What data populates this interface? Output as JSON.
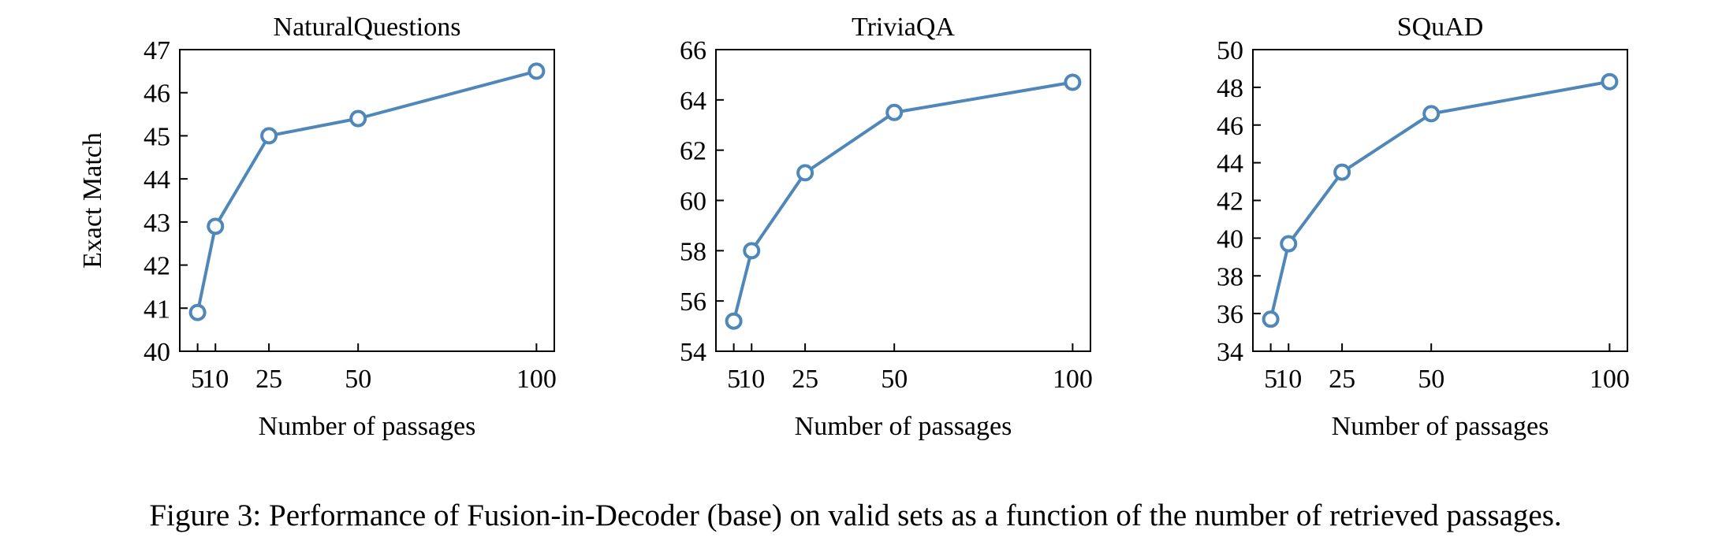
{
  "caption": "Figure 3: Performance of Fusion-in-Decoder (base) on valid sets as a function of the number of retrieved passages.",
  "series_color": "#4f87b8",
  "chart_data": [
    {
      "type": "line",
      "title": "NaturalQuestions",
      "xlabel": "Number of passages",
      "ylabel": "Exact Match",
      "x": [
        5,
        10,
        25,
        50,
        100
      ],
      "values": [
        40.9,
        42.9,
        45.0,
        45.4,
        46.5
      ],
      "xticks": [
        5,
        10,
        25,
        50,
        100
      ],
      "yticks": [
        40,
        41,
        42,
        43,
        44,
        45,
        46,
        47
      ],
      "ylim": [
        40,
        47
      ],
      "grid": false,
      "legend": "none"
    },
    {
      "type": "line",
      "title": "TriviaQA",
      "xlabel": "Number of passages",
      "ylabel": "",
      "x": [
        5,
        10,
        25,
        50,
        100
      ],
      "values": [
        55.2,
        58.0,
        61.1,
        63.5,
        64.7
      ],
      "xticks": [
        5,
        10,
        25,
        50,
        100
      ],
      "yticks": [
        54,
        56,
        58,
        60,
        62,
        64,
        66
      ],
      "ylim": [
        54,
        66
      ],
      "grid": false,
      "legend": "none"
    },
    {
      "type": "line",
      "title": "SQuAD",
      "xlabel": "Number of passages",
      "ylabel": "",
      "x": [
        5,
        10,
        25,
        50,
        100
      ],
      "values": [
        35.7,
        39.7,
        43.5,
        46.6,
        48.3
      ],
      "xticks": [
        5,
        10,
        25,
        50,
        100
      ],
      "yticks": [
        34,
        36,
        38,
        40,
        42,
        44,
        46,
        48,
        50
      ],
      "ylim": [
        34,
        50
      ],
      "grid": false,
      "legend": "none"
    }
  ]
}
